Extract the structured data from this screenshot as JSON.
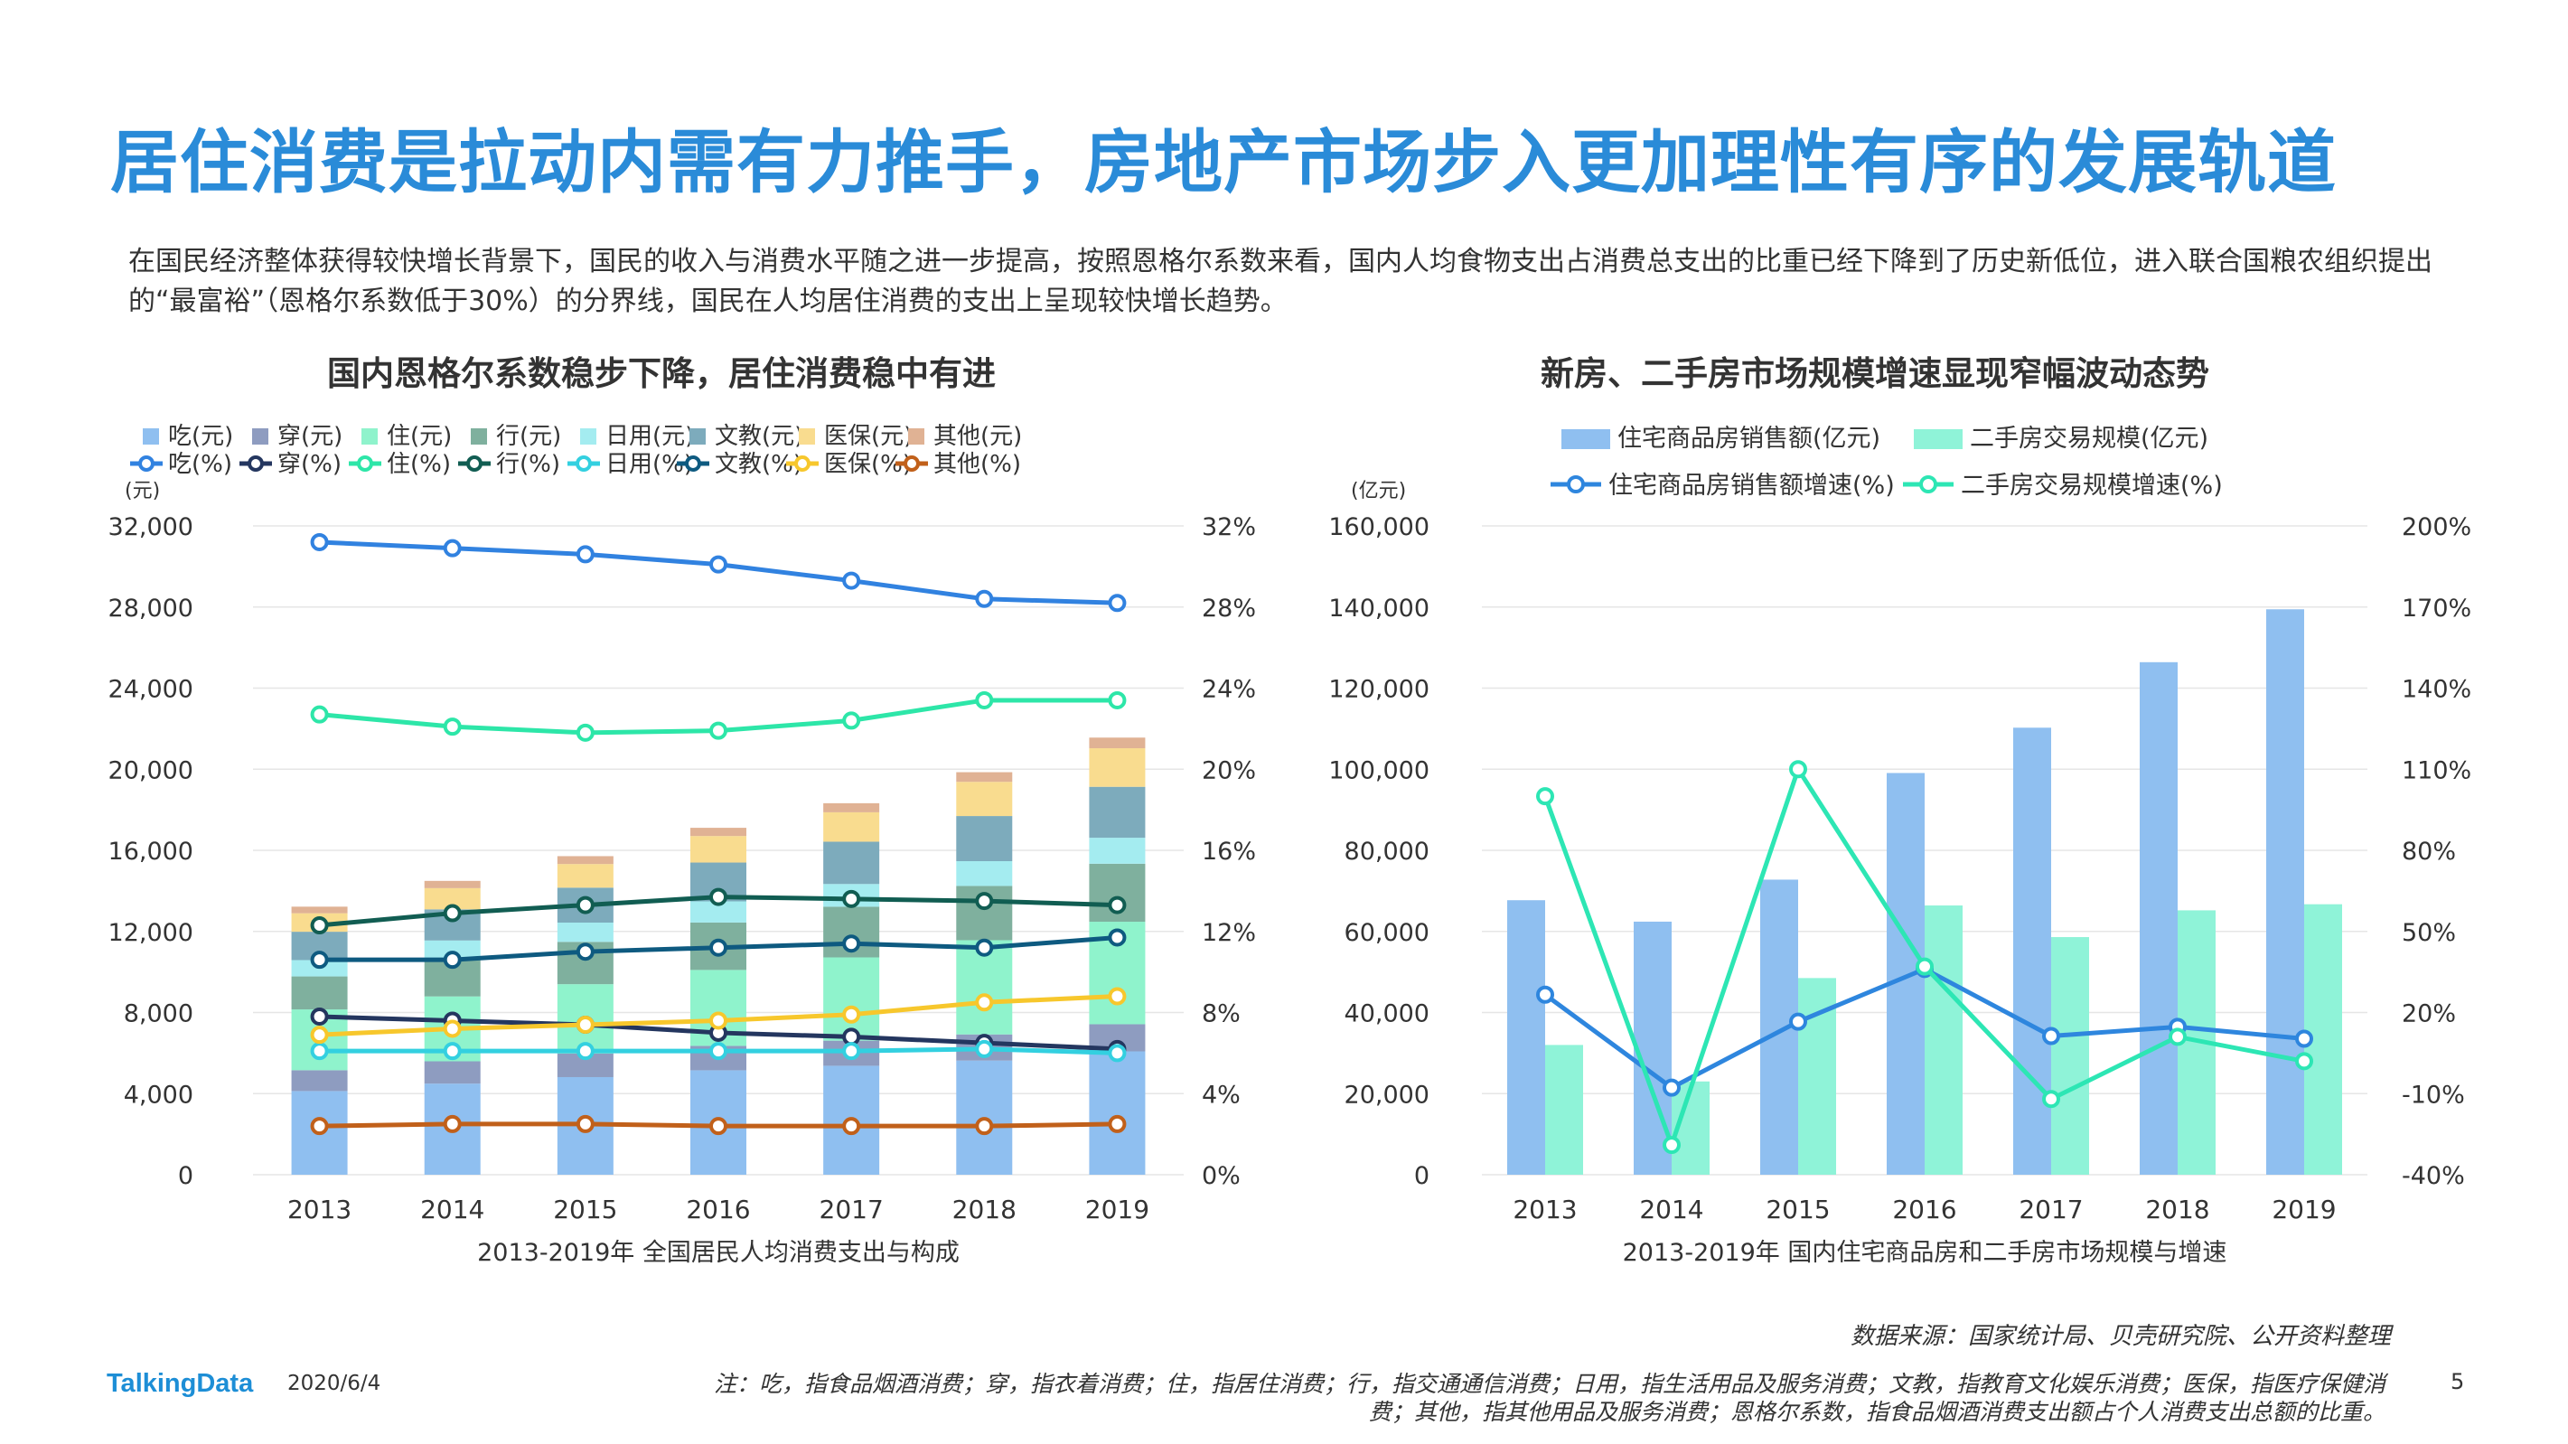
{
  "page": {
    "title": "居住消费是拉动内需有力推手，房地产市场步入更加理性有序的发展轨道",
    "intro": "在国民经济整体获得较快增长背景下，国民的收入与消费水平随之进一步提高，按照恩格尔系数来看，国内人均食物支出占消费总支出的比重已经下降到了历史新低位，进入联合国粮农组织提出的“最富裕”（恩格尔系数低于30%）的分界线，国民在人均居住消费的支出上呈现较快增长趋势。",
    "source": "数据来源：国家统计局、贝壳研究院、公开资料整理",
    "logo": "TalkingData",
    "date": "2020/6/4",
    "note": "注：吃，指食品烟酒消费；穿，指衣着消费；住，指居住消费；行，指交通通信消费；日用，指生活用品及服务消费；文教，指教育文化娱乐消费；医保，指医疗保健消费；其他，指其他用品及服务消费；恩格尔系数，指食品烟酒消费支出额占个人消费支出总额的比重。",
    "page_number": "5"
  },
  "chart_data": [
    {
      "type": "bar",
      "stacked": true,
      "title": "国内恩格尔系数稳步下降，居住消费稳中有进",
      "caption": "2013-2019年  全国居民人均消费支出与构成",
      "y_unit": "(元)",
      "categories": [
        "2013",
        "2014",
        "2015",
        "2016",
        "2017",
        "2018",
        "2019"
      ],
      "ylim": [
        0,
        32000
      ],
      "yticks": [
        "0",
        "4,000",
        "8,000",
        "12,000",
        "16,000",
        "20,000",
        "24,000",
        "28,000",
        "32,000"
      ],
      "y2lim": [
        0,
        32
      ],
      "y2ticks": [
        "0%",
        "4%",
        "8%",
        "12%",
        "16%",
        "20%",
        "24%",
        "28%",
        "32%"
      ],
      "legend_position": "top",
      "grid": true,
      "bar_series": [
        {
          "name": "吃(元)",
          "color": "#8fbff0",
          "values": [
            4127,
            4494,
            4814,
            5151,
            5374,
            5631,
            6084
          ]
        },
        {
          "name": "穿(元)",
          "color": "#8e9cc0",
          "values": [
            1027,
            1099,
            1164,
            1203,
            1238,
            1289,
            1338
          ]
        },
        {
          "name": "住(元)",
          "color": "#8ff3cc",
          "values": [
            2999,
            3201,
            3419,
            3746,
            4107,
            4647,
            5055
          ]
        },
        {
          "name": "行(元)",
          "color": "#7fb09e",
          "values": [
            1627,
            1869,
            2087,
            2338,
            2499,
            2675,
            2862
          ]
        },
        {
          "name": "日用(元)",
          "color": "#a4ecf0",
          "values": [
            806,
            890,
            951,
            1044,
            1121,
            1223,
            1281
          ]
        },
        {
          "name": "文教(元)",
          "color": "#7dabbc",
          "values": [
            1398,
            1536,
            1723,
            1915,
            2086,
            2226,
            2513
          ]
        },
        {
          "name": "医保(元)",
          "color": "#f9dc8f",
          "values": [
            912,
            1045,
            1165,
            1307,
            1451,
            1685,
            1902
          ]
        },
        {
          "name": "其他(元)",
          "color": "#e0b294",
          "values": [
            325,
            358,
            389,
            406,
            447,
            477,
            524
          ]
        }
      ],
      "line_series": [
        {
          "name": "吃(%)",
          "color": "#3182e0",
          "values": [
            31.2,
            30.9,
            30.6,
            30.1,
            29.3,
            28.4,
            28.2
          ]
        },
        {
          "name": "穿(%)",
          "color": "#24365f",
          "values": [
            7.8,
            7.6,
            7.4,
            7.0,
            6.8,
            6.5,
            6.2
          ]
        },
        {
          "name": "住(%)",
          "color": "#2de6a8",
          "values": [
            22.7,
            22.1,
            21.8,
            21.9,
            22.4,
            23.4,
            23.4
          ]
        },
        {
          "name": "行(%)",
          "color": "#115d52",
          "values": [
            12.3,
            12.9,
            13.3,
            13.7,
            13.6,
            13.5,
            13.3
          ]
        },
        {
          "name": "日用(%)",
          "color": "#33d0e0",
          "values": [
            6.1,
            6.1,
            6.1,
            6.1,
            6.1,
            6.2,
            6.0
          ]
        },
        {
          "name": "文教(%)",
          "color": "#0e5a80",
          "values": [
            10.6,
            10.6,
            11.0,
            11.2,
            11.4,
            11.2,
            11.7
          ]
        },
        {
          "name": "医保(%)",
          "color": "#f7c72c",
          "values": [
            6.9,
            7.2,
            7.4,
            7.6,
            7.9,
            8.5,
            8.8
          ]
        },
        {
          "name": "其他(%)",
          "color": "#c1601a",
          "values": [
            2.4,
            2.5,
            2.5,
            2.4,
            2.4,
            2.4,
            2.5
          ]
        }
      ]
    },
    {
      "type": "bar",
      "title": "新房、二手房市场规模增速显现窄幅波动态势",
      "caption": "2013-2019年  国内住宅商品房和二手房市场规模与增速",
      "y_unit": "(亿元)",
      "categories": [
        "2013",
        "2014",
        "2015",
        "2016",
        "2017",
        "2018",
        "2019"
      ],
      "ylim": [
        0,
        160000
      ],
      "yticks": [
        "0",
        "20,000",
        "40,000",
        "60,000",
        "80,000",
        "100,000",
        "120,000",
        "140,000",
        "160,000"
      ],
      "y2lim": [
        -40,
        200
      ],
      "y2ticks": [
        "-40%",
        "-10%",
        "20%",
        "50%",
        "80%",
        "110%",
        "140%",
        "170%",
        "200%"
      ],
      "legend_position": "top",
      "grid": true,
      "bar_series": [
        {
          "name": "住宅商品房销售额(亿元)",
          "color": "#8fbff0",
          "values": [
            67695,
            62411,
            72770,
            99064,
            110239,
            126393,
            139440
          ]
        },
        {
          "name": "二手房交易规模(亿元)",
          "color": "#8ff3d8",
          "values": [
            32000,
            23000,
            48500,
            66400,
            58600,
            65200,
            66700
          ]
        }
      ],
      "line_series": [
        {
          "name": "住宅商品房销售额增速(%)",
          "color": "#2e86de",
          "values": [
            26.6,
            -7.8,
            16.6,
            36.1,
            11.3,
            14.7,
            10.3
          ]
        },
        {
          "name": "二手房交易规模增速(%)",
          "color": "#2de6b4",
          "values": [
            100.0,
            -29.0,
            110.0,
            37.0,
            -12.0,
            11.0,
            2.0
          ]
        }
      ]
    }
  ]
}
